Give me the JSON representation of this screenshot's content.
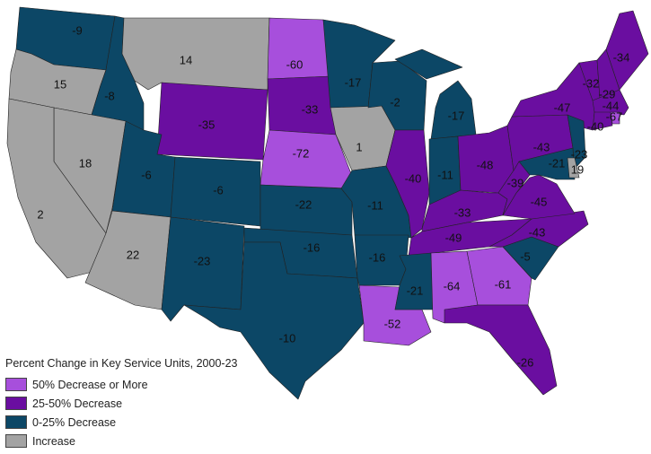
{
  "colors": {
    "decrease_50_plus": "#a74fdc",
    "decrease_25_50": "#6a0ea0",
    "decrease_0_25": "#0c4766",
    "increase": "#a3a3a3"
  },
  "legend": {
    "title": "Percent Change in Key Service Units, 2000-23",
    "items": [
      {
        "key": "decrease_50_plus",
        "label": "50% Decrease or More"
      },
      {
        "key": "decrease_25_50",
        "label": "25-50% Decrease"
      },
      {
        "key": "decrease_0_25",
        "label": "0-25% Decrease"
      },
      {
        "key": "increase",
        "label": "Increase"
      }
    ]
  },
  "states": [
    {
      "id": "WA",
      "value": "-9",
      "cat": "decrease_0_25"
    },
    {
      "id": "OR",
      "value": "15",
      "cat": "increase"
    },
    {
      "id": "ID",
      "value": "-8",
      "cat": "decrease_0_25"
    },
    {
      "id": "MT",
      "value": "14",
      "cat": "increase"
    },
    {
      "id": "ND",
      "value": "-60",
      "cat": "decrease_50_plus"
    },
    {
      "id": "SD",
      "value": "-33",
      "cat": "decrease_25_50"
    },
    {
      "id": "WY",
      "value": "-35",
      "cat": "decrease_25_50"
    },
    {
      "id": "NE",
      "value": "-72",
      "cat": "decrease_50_plus"
    },
    {
      "id": "NV",
      "value": "18",
      "cat": "increase"
    },
    {
      "id": "CA",
      "value": "2",
      "cat": "increase"
    },
    {
      "id": "UT",
      "value": "-6",
      "cat": "decrease_0_25"
    },
    {
      "id": "CO",
      "value": "-6",
      "cat": "decrease_0_25"
    },
    {
      "id": "AZ",
      "value": "22",
      "cat": "increase"
    },
    {
      "id": "NM",
      "value": "-23",
      "cat": "decrease_0_25"
    },
    {
      "id": "KS",
      "value": "-22",
      "cat": "decrease_0_25"
    },
    {
      "id": "OK",
      "value": "-16",
      "cat": "decrease_0_25"
    },
    {
      "id": "TX",
      "value": "-10",
      "cat": "decrease_0_25"
    },
    {
      "id": "MN",
      "value": "-17",
      "cat": "decrease_0_25"
    },
    {
      "id": "IA",
      "value": "1",
      "cat": "increase"
    },
    {
      "id": "MO",
      "value": "-11",
      "cat": "decrease_0_25"
    },
    {
      "id": "AR",
      "value": "-16",
      "cat": "decrease_0_25"
    },
    {
      "id": "LA",
      "value": "-52",
      "cat": "decrease_50_plus"
    },
    {
      "id": "WI",
      "value": "-2",
      "cat": "decrease_0_25"
    },
    {
      "id": "IL",
      "value": "-40",
      "cat": "decrease_25_50"
    },
    {
      "id": "MI",
      "value": "-17",
      "cat": "decrease_0_25"
    },
    {
      "id": "IN",
      "value": "-11",
      "cat": "decrease_0_25"
    },
    {
      "id": "OH",
      "value": "-48",
      "cat": "decrease_25_50"
    },
    {
      "id": "KY",
      "value": "-33",
      "cat": "decrease_25_50"
    },
    {
      "id": "TN",
      "value": "-49",
      "cat": "decrease_25_50"
    },
    {
      "id": "MS",
      "value": "-21",
      "cat": "decrease_0_25"
    },
    {
      "id": "AL",
      "value": "-64",
      "cat": "decrease_50_plus"
    },
    {
      "id": "GA",
      "value": "-61",
      "cat": "decrease_50_plus"
    },
    {
      "id": "FL",
      "value": "-26",
      "cat": "decrease_25_50"
    },
    {
      "id": "SC",
      "value": "-5",
      "cat": "decrease_0_25"
    },
    {
      "id": "NC",
      "value": "-43",
      "cat": "decrease_25_50"
    },
    {
      "id": "VA",
      "value": "-45",
      "cat": "decrease_25_50"
    },
    {
      "id": "WV",
      "value": "-39",
      "cat": "decrease_25_50"
    },
    {
      "id": "PA",
      "value": "-43",
      "cat": "decrease_25_50"
    },
    {
      "id": "NY",
      "value": "-47",
      "cat": "decrease_25_50"
    },
    {
      "id": "NJ",
      "value": "-23",
      "cat": "decrease_0_25"
    },
    {
      "id": "MD",
      "value": "-21",
      "cat": "decrease_0_25"
    },
    {
      "id": "DE",
      "value": "19",
      "cat": "increase"
    },
    {
      "id": "VT",
      "value": "-32",
      "cat": "decrease_25_50"
    },
    {
      "id": "NH",
      "value": "-29",
      "cat": "decrease_25_50"
    },
    {
      "id": "ME",
      "value": "-34",
      "cat": "decrease_25_50"
    },
    {
      "id": "MA",
      "value": "-44",
      "cat": "decrease_25_50"
    },
    {
      "id": "CT",
      "value": "-40",
      "cat": "decrease_25_50"
    },
    {
      "id": "RI",
      "value": "-67",
      "cat": "decrease_50_plus"
    }
  ]
}
